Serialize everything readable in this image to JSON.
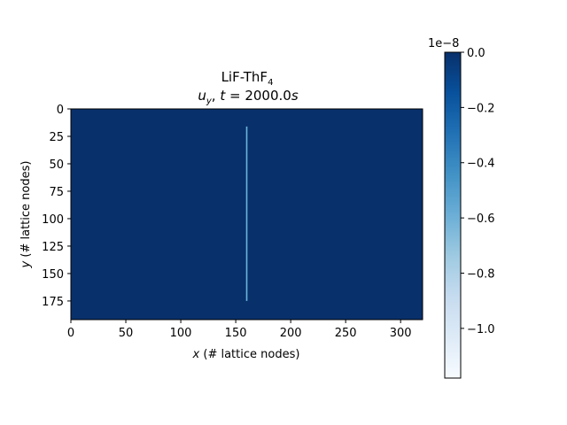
{
  "chart_data": {
    "type": "heatmap",
    "title_line1_main": "LiF-ThF",
    "title_line1_sub": "4",
    "title_line2": {
      "var": "u",
      "var_sub": "y",
      "sep": ", ",
      "tvar": "t",
      "eq": " = 2000.0",
      "unit": "s"
    },
    "xlabel": {
      "var": "x",
      "text": " (# lattice nodes)"
    },
    "ylabel": {
      "var": "y",
      "text": " (# lattice nodes)"
    },
    "x_ticks": [
      "0",
      "50",
      "100",
      "150",
      "200",
      "250",
      "300"
    ],
    "y_ticks": [
      "0",
      "25",
      "50",
      "75",
      "100",
      "125",
      "150",
      "175"
    ],
    "x_range": [
      0,
      320
    ],
    "y_range": [
      0,
      192
    ],
    "y_inverted": true,
    "colormap": "Blues_r",
    "field_value_background": 0.0,
    "feature": {
      "kind": "vertical line",
      "x": 160,
      "y_start": 16,
      "y_end": 175,
      "value_approx": -6e-09
    },
    "colorbar": {
      "offset_label": "1e−8",
      "range": [
        -1.18,
        0.0
      ],
      "ticks": [
        "0.0",
        "−0.2",
        "−0.4",
        "−0.6",
        "−0.8",
        "−1.0"
      ]
    },
    "colors": {
      "background_dark": "#08306b",
      "feature_line": "#6ab6dc",
      "colorbar_top": "#08306b",
      "colorbar_bottom": "#f7fbff"
    }
  }
}
